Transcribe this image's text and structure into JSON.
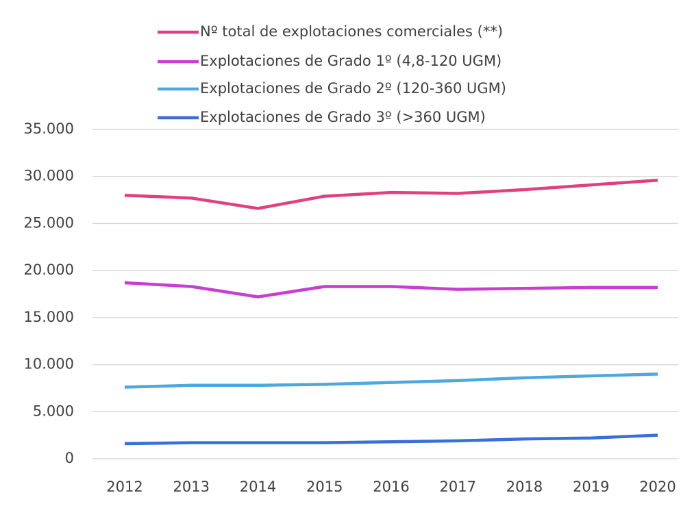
{
  "chart_data": {
    "type": "line",
    "categories": [
      "2012",
      "2013",
      "2014",
      "2015",
      "2016",
      "2017",
      "2018",
      "2019",
      "2020"
    ],
    "series": [
      {
        "name": "Nº total de explotaciones comerciales (**)",
        "color": "#e0407f",
        "values": [
          28000,
          27700,
          26600,
          27900,
          28300,
          28200,
          28600,
          29100,
          29600
        ]
      },
      {
        "name": "Explotaciones de Grado 1º (4,8-120 UGM)",
        "color": "#c83fd0",
        "values": [
          18700,
          18300,
          17200,
          18300,
          18300,
          18000,
          18100,
          18200,
          18200
        ]
      },
      {
        "name": "Explotaciones de Grado 2º (120-360 UGM)",
        "color": "#4fa8dc",
        "values": [
          7600,
          7800,
          7800,
          7900,
          8100,
          8300,
          8600,
          8800,
          9000
        ]
      },
      {
        "name": "Explotaciones de Grado 3º (>360 UGM)",
        "color": "#3a6fd8",
        "values": [
          1600,
          1700,
          1700,
          1700,
          1800,
          1900,
          2100,
          2200,
          2500
        ]
      }
    ],
    "ylim": [
      0,
      35000
    ],
    "yticks": [
      0,
      {
        "value": 5000,
        "label": "5.000"
      },
      {
        "value": 10000,
        "label": "10.000"
      },
      {
        "value": 15000,
        "label": "15.000"
      },
      {
        "value": 20000,
        "label": "20.000"
      },
      {
        "value": 25000,
        "label": "25.000"
      },
      {
        "value": 30000,
        "label": "30.000"
      },
      {
        "value": 35000,
        "label": "35.000"
      }
    ],
    "grid": true,
    "legend": "top"
  }
}
